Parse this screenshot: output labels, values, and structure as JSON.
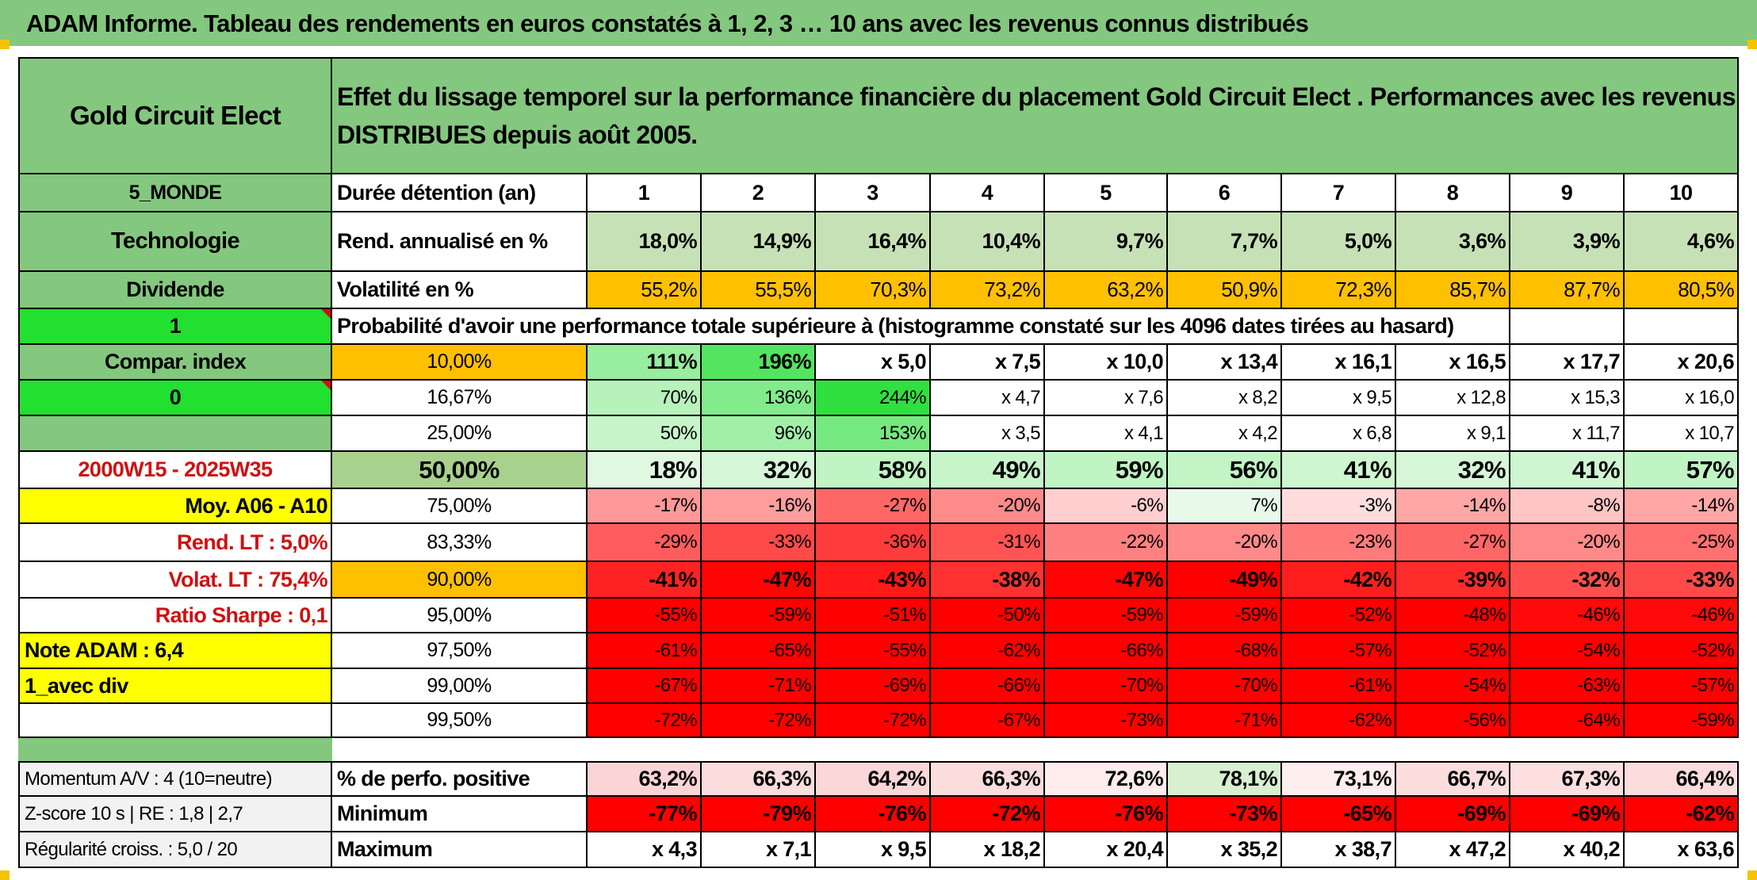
{
  "title": "ADAM Informe. Tableau des rendements en euros constatés à 1, 2, 3 … 10 ans avec les revenus connus distribués",
  "fund_name": "Gold Circuit Elect",
  "description": "Effet du lissage temporel sur la performance financière du placement Gold Circuit Elect . Performances avec les revenus DISTRIBUES depuis août 2005.",
  "sidebar": {
    "zone": "5_MONDE",
    "sector": "Technologie",
    "dividend_label": "Dividende",
    "dividend_value": "1",
    "compar_label": "Compar. index",
    "compar_value": "0",
    "period": "2000W15 - 2025W35",
    "moy": "Moy. A06 - A10",
    "rend_lt": "Rend. LT :   5,0%",
    "volat_lt": "Volat. LT :   75,4%",
    "sharpe": "Ratio Sharpe :   0,1",
    "note": "Note ADAM : 6,4",
    "div_mode": "1_avec div",
    "momentum": "Momentum A/V : 4 (10=neutre)",
    "zscore": "Z-score 10 s | RE : 1,8 | 2,7",
    "regularite": "Régularité croiss. : 5,0 / 20"
  },
  "table": {
    "duration_label": "Durée détention (an)",
    "years": [
      "1",
      "2",
      "3",
      "4",
      "5",
      "6",
      "7",
      "8",
      "9",
      "10"
    ],
    "rend_label": "Rend. annualisé en %",
    "rend": [
      "18,0%",
      "14,9%",
      "16,4%",
      "10,4%",
      "9,7%",
      "7,7%",
      "5,0%",
      "3,6%",
      "3,9%",
      "4,6%"
    ],
    "vol_label": "Volatilité en %",
    "vol": [
      "55,2%",
      "55,5%",
      "70,3%",
      "73,2%",
      "63,2%",
      "50,9%",
      "72,3%",
      "85,7%",
      "87,7%",
      "80,5%"
    ],
    "prob_label": "Probabilité d'avoir une performance totale supérieure à (histogramme constaté sur les 4096 dates tirées au hasard)",
    "percentile_rows": [
      {
        "p": "10,00%",
        "v": [
          "111%",
          "196%",
          "x 5,0",
          "x 7,5",
          "x 10,0",
          "x 13,4",
          "x 16,1",
          "x 16,5",
          "x 17,7",
          "x 20,6"
        ]
      },
      {
        "p": "16,67%",
        "v": [
          "70%",
          "136%",
          "244%",
          "x 4,7",
          "x 7,6",
          "x 8,2",
          "x 9,5",
          "x 12,8",
          "x 15,3",
          "x 16,0"
        ]
      },
      {
        "p": "25,00%",
        "v": [
          "50%",
          "96%",
          "153%",
          "x 3,5",
          "x 4,1",
          "x 4,2",
          "x 6,8",
          "x 9,1",
          "x 11,7",
          "x 10,7"
        ]
      },
      {
        "p": "50,00%",
        "v": [
          "18%",
          "32%",
          "58%",
          "49%",
          "59%",
          "56%",
          "41%",
          "32%",
          "41%",
          "57%"
        ]
      },
      {
        "p": "75,00%",
        "v": [
          "-17%",
          "-16%",
          "-27%",
          "-20%",
          "-6%",
          "7%",
          "-3%",
          "-14%",
          "-8%",
          "-14%"
        ]
      },
      {
        "p": "83,33%",
        "v": [
          "-29%",
          "-33%",
          "-36%",
          "-31%",
          "-22%",
          "-20%",
          "-23%",
          "-27%",
          "-20%",
          "-25%"
        ]
      },
      {
        "p": "90,00%",
        "v": [
          "-41%",
          "-47%",
          "-43%",
          "-38%",
          "-47%",
          "-49%",
          "-42%",
          "-39%",
          "-32%",
          "-33%"
        ]
      },
      {
        "p": "95,00%",
        "v": [
          "-55%",
          "-59%",
          "-51%",
          "-50%",
          "-59%",
          "-59%",
          "-52%",
          "-48%",
          "-46%",
          "-46%"
        ]
      },
      {
        "p": "97,50%",
        "v": [
          "-61%",
          "-65%",
          "-55%",
          "-62%",
          "-66%",
          "-68%",
          "-57%",
          "-52%",
          "-54%",
          "-52%"
        ]
      },
      {
        "p": "99,00%",
        "v": [
          "-67%",
          "-71%",
          "-69%",
          "-66%",
          "-70%",
          "-70%",
          "-61%",
          "-54%",
          "-63%",
          "-57%"
        ]
      },
      {
        "p": "99,50%",
        "v": [
          "-72%",
          "-72%",
          "-72%",
          "-67%",
          "-73%",
          "-71%",
          "-62%",
          "-56%",
          "-64%",
          "-59%"
        ]
      }
    ],
    "pos_label": "% de perfo. positive",
    "pos": [
      "63,2%",
      "66,3%",
      "64,2%",
      "66,3%",
      "72,6%",
      "78,1%",
      "73,1%",
      "66,7%",
      "67,3%",
      "66,4%"
    ],
    "min_label": "Minimum",
    "min": [
      "-77%",
      "-79%",
      "-76%",
      "-72%",
      "-76%",
      "-73%",
      "-65%",
      "-69%",
      "-69%",
      "-62%"
    ],
    "max_label": "Maximum",
    "max": [
      "x 4,3",
      "x 7,1",
      "x 9,5",
      "x 18,2",
      "x 20,4",
      "x 35,2",
      "x 38,7",
      "x 47,2",
      "x 40,2",
      "x 63,6"
    ]
  },
  "colors": {
    "header_green": "#84c77f",
    "rend_fill": "#c7e1b6",
    "vol_fill": "#ffc000",
    "dark_red": "#ff0000",
    "bright_green": "#22e030",
    "yellow": "#ffff00"
  }
}
